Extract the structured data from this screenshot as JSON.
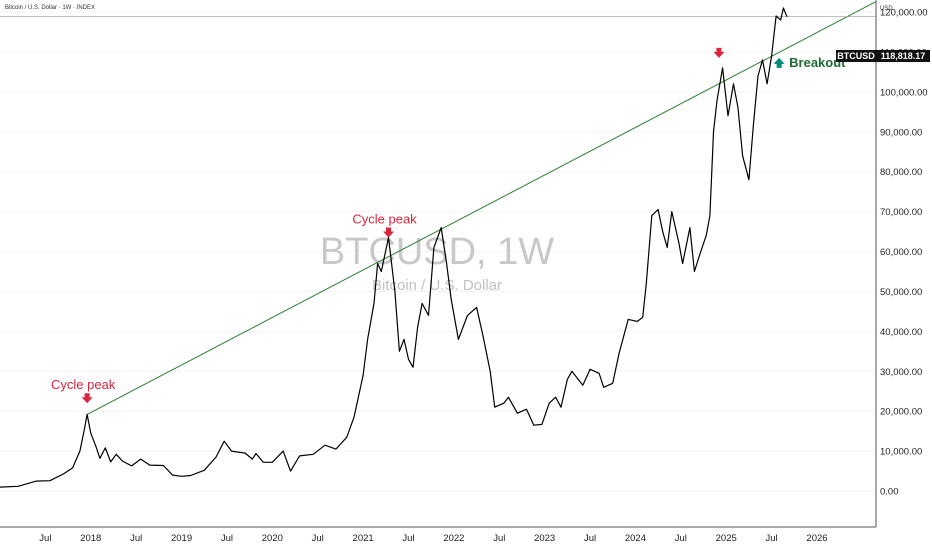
{
  "header": {
    "title": "Bitcoin / U.S. Dollar · 1W · INDEX"
  },
  "price_axis": {
    "unit": "USD"
  },
  "watermark": {
    "symbol": "BTCUSD, 1W",
    "description": "Bitcoin / U.S. Dollar"
  },
  "price_tag": {
    "symbol": "BTCUSD",
    "value": "118,818.17"
  },
  "colors": {
    "price_line": "#000000",
    "trend_line": "#2e7d32",
    "peak_text": "#d7263d",
    "breakout_text": "#1e6b34",
    "breakout_arrow": "#00897b"
  },
  "annotations": [
    {
      "text": "Cycle peak",
      "x": 2017.96,
      "y": 19500,
      "kind": "peak"
    },
    {
      "text": "Cycle peak",
      "x": 2021.28,
      "y": 61000,
      "kind": "peak"
    },
    {
      "text": "",
      "x": 2024.92,
      "y": 106000,
      "kind": "peak"
    },
    {
      "text": "Breakout",
      "x": 2025.55,
      "y": 109000,
      "kind": "breakout"
    }
  ],
  "chart_data": {
    "type": "line",
    "title": "BTCUSD, 1W",
    "subtitle": "Bitcoin / U.S. Dollar",
    "xlabel": "",
    "ylabel": "",
    "xlim": [
      2017.0,
      2026.65
    ],
    "ylim": [
      -9000,
      123000
    ],
    "x_ticks": [
      {
        "label": "Jul",
        "x": 2017.5
      },
      {
        "label": "2018",
        "x": 2018.0
      },
      {
        "label": "Jul",
        "x": 2018.5
      },
      {
        "label": "2019",
        "x": 2019.0
      },
      {
        "label": "Jul",
        "x": 2019.5
      },
      {
        "label": "2020",
        "x": 2020.0
      },
      {
        "label": "Jul",
        "x": 2020.5
      },
      {
        "label": "2021",
        "x": 2021.0
      },
      {
        "label": "Jul",
        "x": 2021.5
      },
      {
        "label": "2022",
        "x": 2022.0
      },
      {
        "label": "Jul",
        "x": 2022.5
      },
      {
        "label": "2023",
        "x": 2023.0
      },
      {
        "label": "Jul",
        "x": 2023.5
      },
      {
        "label": "2024",
        "x": 2024.0
      },
      {
        "label": "Jul",
        "x": 2024.5
      },
      {
        "label": "2025",
        "x": 2025.0
      },
      {
        "label": "Jul",
        "x": 2025.5
      },
      {
        "label": "2026",
        "x": 2026.0
      }
    ],
    "y_ticks": [
      {
        "label": "0.00",
        "y": 0
      },
      {
        "label": "10,000.00",
        "y": 10000
      },
      {
        "label": "20,000.00",
        "y": 20000
      },
      {
        "label": "30,000.00",
        "y": 30000
      },
      {
        "label": "40,000.00",
        "y": 40000
      },
      {
        "label": "50,000.00",
        "y": 50000
      },
      {
        "label": "60,000.00",
        "y": 60000
      },
      {
        "label": "70,000.00",
        "y": 70000
      },
      {
        "label": "80,000.00",
        "y": 80000
      },
      {
        "label": "90,000.00",
        "y": 90000
      },
      {
        "label": "100,000.00",
        "y": 100000
      },
      {
        "label": "110,000.00",
        "y": 110000
      },
      {
        "label": "120,000.00",
        "y": 120000
      }
    ],
    "last_price": 118818.17,
    "series": [
      {
        "values": [
          [
            2017.0,
            1000
          ],
          [
            2017.2,
            1200
          ],
          [
            2017.4,
            2500
          ],
          [
            2017.55,
            2600
          ],
          [
            2017.7,
            4300
          ],
          [
            2017.8,
            5800
          ],
          [
            2017.88,
            10000
          ],
          [
            2017.93,
            15500
          ],
          [
            2017.96,
            19200
          ],
          [
            2018.0,
            14500
          ],
          [
            2018.06,
            11000
          ],
          [
            2018.1,
            8200
          ],
          [
            2018.16,
            10800
          ],
          [
            2018.22,
            7300
          ],
          [
            2018.28,
            9200
          ],
          [
            2018.35,
            7500
          ],
          [
            2018.45,
            6300
          ],
          [
            2018.55,
            8000
          ],
          [
            2018.65,
            6500
          ],
          [
            2018.8,
            6400
          ],
          [
            2018.9,
            4000
          ],
          [
            2019.0,
            3700
          ],
          [
            2019.1,
            3900
          ],
          [
            2019.25,
            5200
          ],
          [
            2019.38,
            8500
          ],
          [
            2019.47,
            12500
          ],
          [
            2019.55,
            10000
          ],
          [
            2019.7,
            9500
          ],
          [
            2019.78,
            8000
          ],
          [
            2019.82,
            9400
          ],
          [
            2019.9,
            7200
          ],
          [
            2020.0,
            7200
          ],
          [
            2020.12,
            10000
          ],
          [
            2020.2,
            5000
          ],
          [
            2020.3,
            8800
          ],
          [
            2020.45,
            9200
          ],
          [
            2020.58,
            11500
          ],
          [
            2020.7,
            10500
          ],
          [
            2020.82,
            13500
          ],
          [
            2020.9,
            18500
          ],
          [
            2021.0,
            29000
          ],
          [
            2021.05,
            38000
          ],
          [
            2021.12,
            47000
          ],
          [
            2021.16,
            57000
          ],
          [
            2021.2,
            55000
          ],
          [
            2021.28,
            63500
          ],
          [
            2021.35,
            50000
          ],
          [
            2021.4,
            35000
          ],
          [
            2021.45,
            38000
          ],
          [
            2021.5,
            33000
          ],
          [
            2021.55,
            31000
          ],
          [
            2021.6,
            41000
          ],
          [
            2021.65,
            47000
          ],
          [
            2021.72,
            44000
          ],
          [
            2021.78,
            61000
          ],
          [
            2021.86,
            66000
          ],
          [
            2021.92,
            57000
          ],
          [
            2021.97,
            48000
          ],
          [
            2022.05,
            38000
          ],
          [
            2022.15,
            44000
          ],
          [
            2022.25,
            46000
          ],
          [
            2022.32,
            39000
          ],
          [
            2022.4,
            30000
          ],
          [
            2022.45,
            21000
          ],
          [
            2022.55,
            22000
          ],
          [
            2022.6,
            23500
          ],
          [
            2022.7,
            19500
          ],
          [
            2022.8,
            20500
          ],
          [
            2022.88,
            16500
          ],
          [
            2022.97,
            16700
          ],
          [
            2023.05,
            22000
          ],
          [
            2023.12,
            23500
          ],
          [
            2023.18,
            21000
          ],
          [
            2023.25,
            28000
          ],
          [
            2023.3,
            30000
          ],
          [
            2023.42,
            26500
          ],
          [
            2023.5,
            30500
          ],
          [
            2023.6,
            29500
          ],
          [
            2023.65,
            26000
          ],
          [
            2023.75,
            27000
          ],
          [
            2023.82,
            34500
          ],
          [
            2023.92,
            43000
          ],
          [
            2024.02,
            42500
          ],
          [
            2024.08,
            43500
          ],
          [
            2024.12,
            52000
          ],
          [
            2024.18,
            69000
          ],
          [
            2024.25,
            70500
          ],
          [
            2024.3,
            65000
          ],
          [
            2024.35,
            61000
          ],
          [
            2024.4,
            70000
          ],
          [
            2024.48,
            62000
          ],
          [
            2024.52,
            57000
          ],
          [
            2024.6,
            66000
          ],
          [
            2024.65,
            55000
          ],
          [
            2024.72,
            60000
          ],
          [
            2024.78,
            64000
          ],
          [
            2024.82,
            69000
          ],
          [
            2024.86,
            90000
          ],
          [
            2024.9,
            98000
          ],
          [
            2024.96,
            106000
          ],
          [
            2025.02,
            94000
          ],
          [
            2025.08,
            102000
          ],
          [
            2025.13,
            96000
          ],
          [
            2025.18,
            84000
          ],
          [
            2025.25,
            78000
          ],
          [
            2025.3,
            92000
          ],
          [
            2025.35,
            104000
          ],
          [
            2025.4,
            108000
          ],
          [
            2025.45,
            102000
          ],
          [
            2025.5,
            109000
          ],
          [
            2025.55,
            119000
          ],
          [
            2025.6,
            118000
          ],
          [
            2025.63,
            121000
          ],
          [
            2025.67,
            118818
          ]
        ]
      },
      {
        "values": [
          [
            2017.96,
            19200
          ],
          [
            2026.65,
            122600
          ]
        ]
      }
    ]
  }
}
